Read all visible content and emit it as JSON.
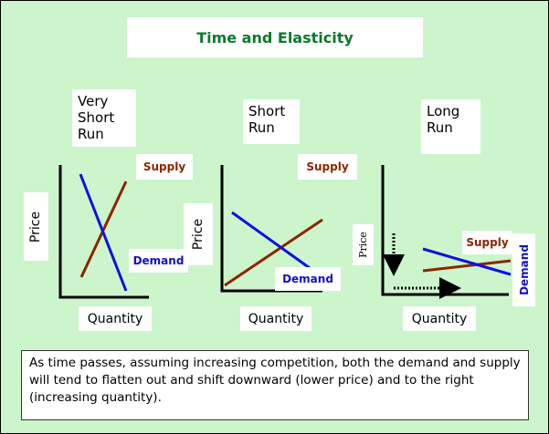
{
  "title": "Time and Elasticity",
  "panels": [
    {
      "label": "Very Short Run",
      "supply": "Supply",
      "demand": "Demand",
      "y_axis": "Price",
      "x_axis": "Quantity"
    },
    {
      "label": "Short Run",
      "supply": "Supply",
      "demand": "Demand",
      "y_axis": "Price",
      "x_axis": "Quantity"
    },
    {
      "label": "Long Run",
      "supply": "Supply",
      "demand": "Demand",
      "y_axis": "Price",
      "x_axis": "Quantity"
    }
  ],
  "caption": "As time passes, assuming increasing competition, both the demand and supply will tend to flatten out and shift downward (lower price) and to the right (increasing quantity)."
}
